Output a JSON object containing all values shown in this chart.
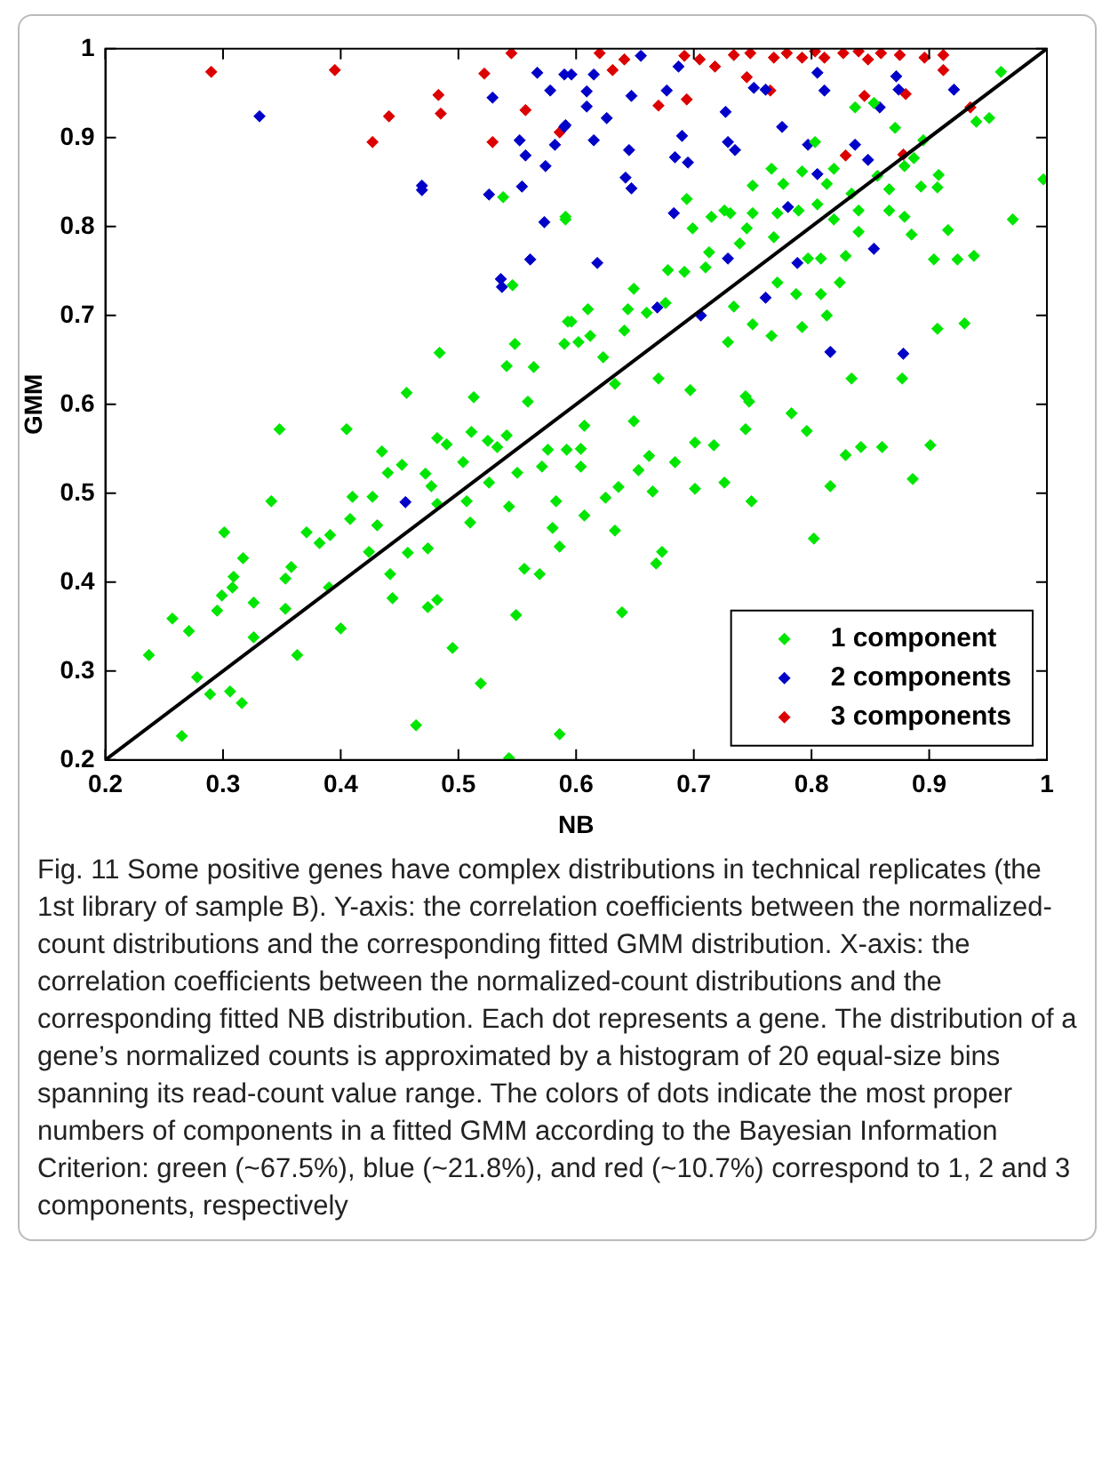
{
  "chart_data": {
    "type": "scatter",
    "xlabel": "NB",
    "ylabel": "GMM",
    "xlim": [
      0.2,
      1
    ],
    "ylim": [
      0.2,
      1
    ],
    "xticks": [
      0.2,
      0.3,
      0.4,
      0.5,
      0.6,
      0.7,
      0.8,
      0.9,
      1
    ],
    "yticks": [
      0.2,
      0.3,
      0.4,
      0.5,
      0.6,
      0.7,
      0.8,
      0.9,
      1
    ],
    "grid": false,
    "legend": "bottom right",
    "marker": "diamond",
    "annotations": [
      "Fig. 11 Some positive genes have complex distributions in technical replicates (the 1st library of sample B). Y-axis: the correlation coefficients between the normalized-count distributions and the corresponding fitted GMM distribution. X-axis: the correlation coefficients between the normalized-count distributions and the corresponding fitted NB distribution. Each dot represents a gene. The distribution of a gene’s normalized counts is approximated by a histogram of 20 equal-size bins spanning its read-count value range. The colors of dots indicate the most proper numbers of components in a fitted GMM according to the Bayesian Information Criterion: green (~67.5%), blue (~21.8%), and red (~10.7%) correspond to 1, 2 and 3 components, respectively"
    ],
    "series": [
      {
        "name": "1 component",
        "color": "#00e600",
        "x": [
          0.237,
          0.257,
          0.271,
          0.265,
          0.278,
          0.289,
          0.295,
          0.299,
          0.301,
          0.308,
          0.309,
          0.317,
          0.306,
          0.316,
          0.326,
          0.326,
          0.341,
          0.348,
          0.353,
          0.353,
          0.358,
          0.363,
          0.371,
          0.382,
          0.391,
          0.39,
          0.4,
          0.405,
          0.408,
          0.41,
          0.427,
          0.431,
          0.424,
          0.435,
          0.44,
          0.442,
          0.444,
          0.452,
          0.456,
          0.464,
          0.457,
          0.472,
          0.474,
          0.477,
          0.482,
          0.482,
          0.474,
          0.482,
          0.49,
          0.495,
          0.504,
          0.507,
          0.51,
          0.511,
          0.513,
          0.519,
          0.525,
          0.526,
          0.533,
          0.541,
          0.543,
          0.543,
          0.549,
          0.55,
          0.556,
          0.559,
          0.569,
          0.571,
          0.576,
          0.58,
          0.583,
          0.586,
          0.586,
          0.592,
          0.607,
          0.604,
          0.604,
          0.625,
          0.607,
          0.633,
          0.636,
          0.649,
          0.653,
          0.662,
          0.665,
          0.673,
          0.668,
          0.639,
          0.684,
          0.701,
          0.701,
          0.717,
          0.726,
          0.749,
          0.744,
          0.747,
          0.783,
          0.796,
          0.802,
          0.816,
          0.829,
          0.842,
          0.86,
          0.886,
          0.901,
          0.961,
          0.951,
          0.94,
          0.997,
          0.971,
          0.938,
          0.924,
          0.907,
          0.93,
          0.904,
          0.916,
          0.907,
          0.908,
          0.893,
          0.887,
          0.895,
          0.879,
          0.866,
          0.871,
          0.856,
          0.853,
          0.837,
          0.834,
          0.84,
          0.829,
          0.813,
          0.819,
          0.803,
          0.805,
          0.792,
          0.789,
          0.808,
          0.808,
          0.813,
          0.776,
          0.771,
          0.766,
          0.75,
          0.75,
          0.745,
          0.739,
          0.731,
          0.726,
          0.715,
          0.699,
          0.694,
          0.713,
          0.71,
          0.692,
          0.678,
          0.676,
          0.66,
          0.649,
          0.644,
          0.641,
          0.623,
          0.612,
          0.602,
          0.596,
          0.61,
          0.591,
          0.75,
          0.766,
          0.792,
          0.734,
          0.729,
          0.787,
          0.771,
          0.768,
          0.797,
          0.824,
          0.866,
          0.879,
          0.885,
          0.84,
          0.819,
          0.834,
          0.877,
          0.744,
          0.697,
          0.67,
          0.633,
          0.538,
          0.591,
          0.546,
          0.593,
          0.59,
          0.548,
          0.484,
          0.541,
          0.564
        ],
        "values": [
          0.318,
          0.359,
          0.345,
          0.227,
          0.293,
          0.274,
          0.368,
          0.385,
          0.456,
          0.394,
          0.406,
          0.427,
          0.277,
          0.264,
          0.377,
          0.338,
          0.491,
          0.572,
          0.37,
          0.404,
          0.417,
          0.318,
          0.456,
          0.444,
          0.453,
          0.394,
          0.348,
          0.572,
          0.471,
          0.496,
          0.496,
          0.464,
          0.434,
          0.547,
          0.523,
          0.409,
          0.382,
          0.532,
          0.613,
          0.239,
          0.433,
          0.522,
          0.438,
          0.508,
          0.488,
          0.562,
          0.372,
          0.38,
          0.555,
          0.326,
          0.535,
          0.491,
          0.467,
          0.569,
          0.608,
          0.286,
          0.559,
          0.512,
          0.552,
          0.565,
          0.485,
          0.202,
          0.363,
          0.523,
          0.415,
          0.603,
          0.409,
          0.53,
          0.549,
          0.461,
          0.491,
          0.44,
          0.229,
          0.549,
          0.576,
          0.55,
          0.53,
          0.495,
          0.475,
          0.458,
          0.507,
          0.581,
          0.526,
          0.542,
          0.502,
          0.434,
          0.421,
          0.366,
          0.535,
          0.557,
          0.505,
          0.554,
          0.512,
          0.491,
          0.572,
          0.603,
          0.59,
          0.57,
          0.449,
          0.508,
          0.543,
          0.552,
          0.552,
          0.516,
          0.554,
          0.974,
          0.922,
          0.918,
          0.853,
          0.808,
          0.767,
          0.763,
          0.685,
          0.691,
          0.763,
          0.796,
          0.844,
          0.858,
          0.845,
          0.877,
          0.897,
          0.868,
          0.842,
          0.911,
          0.857,
          0.939,
          0.934,
          0.837,
          0.794,
          0.767,
          0.848,
          0.808,
          0.895,
          0.825,
          0.862,
          0.818,
          0.764,
          0.724,
          0.7,
          0.848,
          0.815,
          0.865,
          0.846,
          0.815,
          0.798,
          0.781,
          0.815,
          0.818,
          0.811,
          0.798,
          0.831,
          0.771,
          0.754,
          0.749,
          0.751,
          0.714,
          0.703,
          0.73,
          0.707,
          0.683,
          0.653,
          0.677,
          0.67,
          0.693,
          0.707,
          0.811,
          0.69,
          0.677,
          0.687,
          0.71,
          0.67,
          0.724,
          0.737,
          0.788,
          0.764,
          0.737,
          0.818,
          0.811,
          0.791,
          0.818,
          0.865,
          0.629,
          0.629,
          0.609,
          0.616,
          0.629,
          0.623,
          0.833,
          0.808,
          0.734,
          0.693,
          0.668,
          0.668,
          0.658,
          0.643,
          0.642
        ]
      },
      {
        "name": "2 components",
        "color": "#0000c8",
        "x": [
          0.331,
          0.469,
          0.469,
          0.526,
          0.529,
          0.567,
          0.578,
          0.59,
          0.552,
          0.557,
          0.574,
          0.582,
          0.591,
          0.554,
          0.573,
          0.561,
          0.536,
          0.537,
          0.596,
          0.615,
          0.609,
          0.609,
          0.626,
          0.59,
          0.615,
          0.655,
          0.647,
          0.645,
          0.642,
          0.647,
          0.687,
          0.677,
          0.69,
          0.684,
          0.695,
          0.683,
          0.727,
          0.729,
          0.735,
          0.751,
          0.761,
          0.775,
          0.78,
          0.805,
          0.811,
          0.797,
          0.805,
          0.837,
          0.848,
          0.858,
          0.874,
          0.872,
          0.921,
          0.618,
          0.669,
          0.706,
          0.761,
          0.788,
          0.853,
          0.816,
          0.878,
          0.729,
          0.455
        ],
        "values": [
          0.924,
          0.846,
          0.841,
          0.836,
          0.945,
          0.973,
          0.953,
          0.971,
          0.897,
          0.88,
          0.868,
          0.892,
          0.914,
          0.845,
          0.805,
          0.763,
          0.741,
          0.732,
          0.971,
          0.971,
          0.952,
          0.935,
          0.922,
          0.912,
          0.897,
          0.992,
          0.947,
          0.886,
          0.855,
          0.843,
          0.98,
          0.953,
          0.902,
          0.878,
          0.872,
          0.815,
          0.929,
          0.895,
          0.886,
          0.956,
          0.954,
          0.912,
          0.822,
          0.973,
          0.953,
          0.892,
          0.859,
          0.892,
          0.875,
          0.934,
          0.954,
          0.969,
          0.954,
          0.759,
          0.709,
          0.7,
          0.72,
          0.759,
          0.775,
          0.659,
          0.657,
          0.764,
          0.49
        ]
      },
      {
        "name": "3 components",
        "color": "#dc0000",
        "x": [
          0.29,
          0.395,
          0.522,
          0.545,
          0.483,
          0.441,
          0.485,
          0.427,
          0.529,
          0.557,
          0.586,
          0.62,
          0.641,
          0.631,
          0.692,
          0.705,
          0.718,
          0.734,
          0.748,
          0.745,
          0.768,
          0.779,
          0.792,
          0.803,
          0.811,
          0.827,
          0.84,
          0.848,
          0.859,
          0.875,
          0.896,
          0.912,
          0.912,
          0.88,
          0.845,
          0.67,
          0.694,
          0.829,
          0.878,
          0.935,
          0.765
        ],
        "values": [
          0.974,
          0.976,
          0.972,
          0.995,
          0.948,
          0.924,
          0.927,
          0.895,
          0.895,
          0.931,
          0.906,
          0.995,
          0.988,
          0.976,
          0.992,
          0.988,
          0.98,
          0.993,
          0.995,
          0.968,
          0.99,
          0.995,
          0.99,
          0.997,
          0.99,
          0.995,
          0.997,
          0.988,
          0.995,
          0.993,
          0.99,
          0.993,
          0.976,
          0.949,
          0.947,
          0.936,
          0.943,
          0.88,
          0.881,
          0.934,
          0.953
        ]
      },
      {
        "type": "line",
        "color": "#000000",
        "x": [
          0.2,
          1
        ],
        "values": [
          0.2,
          1
        ],
        "marker": "none"
      }
    ]
  }
}
